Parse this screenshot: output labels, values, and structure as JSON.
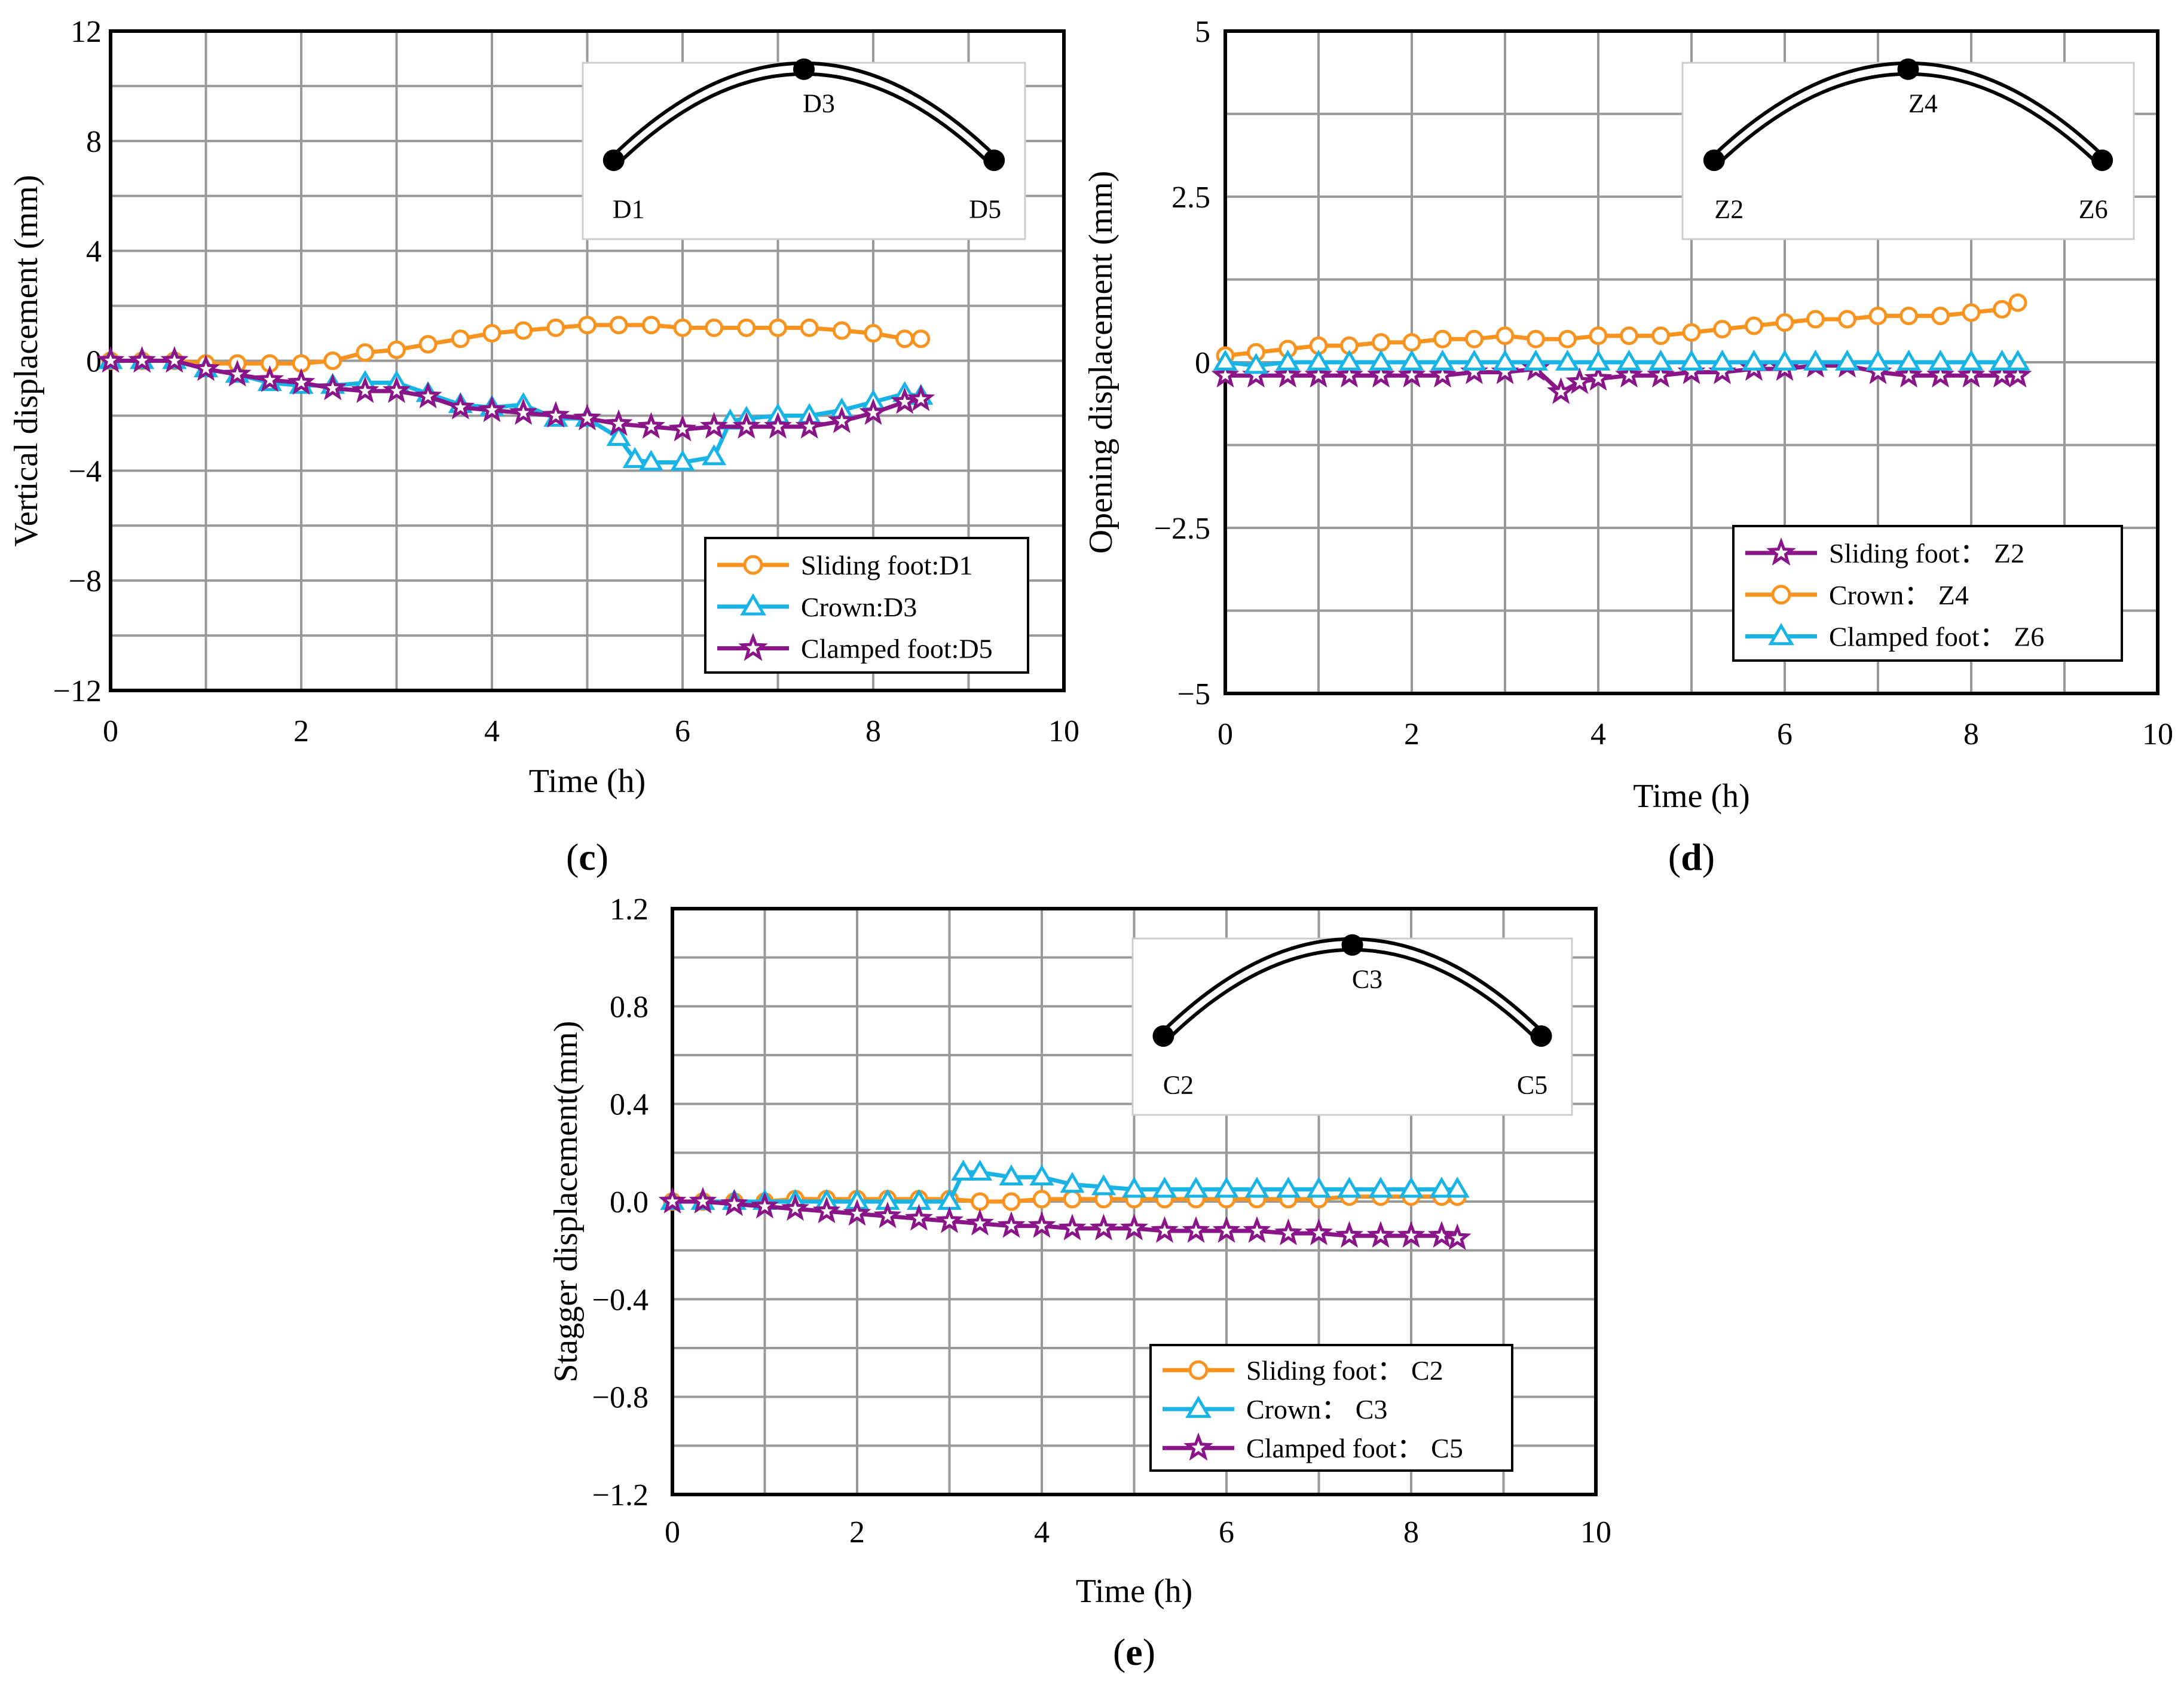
{
  "colors": {
    "orange": "#f7931e",
    "blue": "#1ab3e6",
    "purple": "#8a1588",
    "grid": "#999999",
    "axis": "#000000"
  },
  "chart_data": [
    {
      "id": "c",
      "type": "line",
      "panel_label": "c",
      "xlabel": "Time (h)",
      "ylabel": "Vertical displacement (mm)",
      "xlim": [
        0,
        10
      ],
      "ylim": [
        -12,
        12
      ],
      "xticks": [
        0,
        2,
        4,
        6,
        8,
        10
      ],
      "yticks": [
        -12,
        -8,
        -4,
        0,
        4,
        8,
        12
      ],
      "ytick_labels": [
        "−12",
        "−8",
        "−4",
        "0",
        "4",
        "8",
        "12"
      ],
      "grid": true,
      "legend_position": "bottom-right",
      "inset": {
        "left_label": "D1",
        "crown_label": "D3",
        "right_label": "D5"
      },
      "series": [
        {
          "name": "Sliding foot:D1",
          "color": "orange",
          "marker": "circle",
          "x": [
            0,
            0.33,
            0.67,
            1,
            1.33,
            1.67,
            2,
            2.33,
            2.67,
            3,
            3.33,
            3.67,
            4,
            4.33,
            4.67,
            5,
            5.33,
            5.67,
            6,
            6.33,
            6.67,
            7,
            7.33,
            7.67,
            8,
            8.33,
            8.5
          ],
          "y": [
            0,
            0,
            0,
            -0.1,
            -0.1,
            -0.1,
            -0.1,
            0,
            0.3,
            0.4,
            0.6,
            0.8,
            1.0,
            1.1,
            1.2,
            1.3,
            1.3,
            1.3,
            1.2,
            1.2,
            1.2,
            1.2,
            1.2,
            1.1,
            1.0,
            0.8,
            0.8
          ]
        },
        {
          "name": "Crown:D3",
          "color": "blue",
          "marker": "triangle",
          "x": [
            0,
            0.33,
            0.67,
            1,
            1.33,
            1.67,
            2,
            2.33,
            2.67,
            3,
            3.33,
            3.67,
            4,
            4.33,
            4.67,
            5,
            5.33,
            5.5,
            5.67,
            6,
            6.33,
            6.5,
            6.67,
            7,
            7.33,
            7.67,
            8,
            8.33,
            8.5
          ],
          "y": [
            0,
            0,
            0,
            -0.3,
            -0.5,
            -0.8,
            -0.9,
            -0.9,
            -0.8,
            -0.8,
            -1.2,
            -1.6,
            -1.7,
            -1.6,
            -2.1,
            -2.1,
            -2.8,
            -3.6,
            -3.7,
            -3.7,
            -3.5,
            -2.2,
            -2.1,
            -2.0,
            -2.0,
            -1.8,
            -1.5,
            -1.2,
            -1.3
          ]
        },
        {
          "name": "Clamped foot:D5",
          "color": "purple",
          "marker": "star",
          "x": [
            0,
            0.33,
            0.67,
            1,
            1.33,
            1.67,
            2,
            2.33,
            2.67,
            3,
            3.33,
            3.67,
            4,
            4.33,
            4.67,
            5,
            5.33,
            5.67,
            6,
            6.33,
            6.67,
            7,
            7.33,
            7.67,
            8,
            8.33,
            8.5
          ],
          "y": [
            0,
            0,
            0,
            -0.3,
            -0.5,
            -0.7,
            -0.8,
            -1.0,
            -1.1,
            -1.1,
            -1.3,
            -1.7,
            -1.8,
            -1.9,
            -2.0,
            -2.1,
            -2.3,
            -2.4,
            -2.5,
            -2.4,
            -2.4,
            -2.4,
            -2.4,
            -2.2,
            -1.9,
            -1.5,
            -1.4
          ]
        }
      ]
    },
    {
      "id": "d",
      "type": "line",
      "panel_label": "d",
      "xlabel": "Time (h)",
      "ylabel": "Opening displacement (mm)",
      "xlim": [
        0,
        10
      ],
      "ylim": [
        -5,
        5
      ],
      "xticks": [
        0,
        2,
        4,
        6,
        8,
        10
      ],
      "yticks": [
        -5,
        -2.5,
        0,
        2.5,
        5
      ],
      "ytick_labels": [
        "−5",
        "−2.5",
        "0",
        "2.5",
        "5"
      ],
      "grid": true,
      "legend_position": "bottom-right",
      "inset": {
        "left_label": "Z2",
        "crown_label": "Z4",
        "right_label": "Z6"
      },
      "series": [
        {
          "name": "Sliding foot： Z2",
          "color": "purple",
          "marker": "star",
          "x": [
            0,
            0.33,
            0.67,
            1,
            1.33,
            1.67,
            2,
            2.33,
            2.67,
            3,
            3.33,
            3.6,
            3.8,
            4,
            4.33,
            4.67,
            5,
            5.33,
            5.67,
            6,
            6.33,
            6.67,
            7,
            7.33,
            7.67,
            8,
            8.33,
            8.5
          ],
          "y": [
            -0.2,
            -0.2,
            -0.2,
            -0.2,
            -0.2,
            -0.2,
            -0.2,
            -0.2,
            -0.15,
            -0.15,
            -0.1,
            -0.45,
            -0.3,
            -0.25,
            -0.2,
            -0.2,
            -0.15,
            -0.15,
            -0.1,
            -0.1,
            -0.05,
            -0.05,
            -0.15,
            -0.2,
            -0.2,
            -0.2,
            -0.2,
            -0.2
          ]
        },
        {
          "name": "Crown： Z4",
          "color": "orange",
          "marker": "circle",
          "x": [
            0,
            0.33,
            0.67,
            1,
            1.33,
            1.67,
            2,
            2.33,
            2.67,
            3,
            3.33,
            3.67,
            4,
            4.33,
            4.67,
            5,
            5.33,
            5.67,
            6,
            6.33,
            6.67,
            7,
            7.33,
            7.67,
            8,
            8.33,
            8.5
          ],
          "y": [
            0.1,
            0.15,
            0.2,
            0.25,
            0.25,
            0.3,
            0.3,
            0.35,
            0.35,
            0.4,
            0.35,
            0.35,
            0.4,
            0.4,
            0.4,
            0.45,
            0.5,
            0.55,
            0.6,
            0.65,
            0.65,
            0.7,
            0.7,
            0.7,
            0.75,
            0.8,
            0.9
          ]
        },
        {
          "name": "Clamped foot： Z6",
          "color": "blue",
          "marker": "triangle",
          "x": [
            0,
            0.33,
            0.67,
            1,
            1.33,
            1.67,
            2,
            2.33,
            2.67,
            3,
            3.33,
            3.67,
            4,
            4.33,
            4.67,
            5,
            5.33,
            5.67,
            6,
            6.33,
            6.67,
            7,
            7.33,
            7.67,
            8,
            8.33,
            8.5
          ],
          "y": [
            0,
            -0.05,
            0,
            0,
            0,
            0,
            0,
            0,
            0,
            0,
            0,
            0,
            0,
            0,
            0,
            0,
            0,
            0,
            0,
            0,
            0,
            0,
            0,
            0,
            0,
            0,
            0
          ]
        }
      ]
    },
    {
      "id": "e",
      "type": "line",
      "panel_label": "e",
      "xlabel": "Time (h)",
      "ylabel": "Stagger displacement(mm)",
      "xlim": [
        0,
        10
      ],
      "ylim": [
        -1.2,
        1.2
      ],
      "xticks": [
        0,
        2,
        4,
        6,
        8,
        10
      ],
      "yticks": [
        -1.2,
        -0.8,
        -0.4,
        0,
        0.4,
        0.8,
        1.2
      ],
      "ytick_labels": [
        "−1.2",
        "−0.8",
        "−0.4",
        "0.0",
        "0.4",
        "0.8",
        "1.2"
      ],
      "grid": true,
      "legend_position": "bottom-right",
      "inset": {
        "left_label": "C2",
        "crown_label": "C3",
        "right_label": "C5"
      },
      "series": [
        {
          "name": "Sliding foot： C2",
          "color": "orange",
          "marker": "circle",
          "x": [
            0,
            0.33,
            0.67,
            1,
            1.33,
            1.67,
            2,
            2.33,
            2.67,
            3,
            3.33,
            3.67,
            4,
            4.33,
            4.67,
            5,
            5.33,
            5.67,
            6,
            6.33,
            6.67,
            7,
            7.33,
            7.67,
            8,
            8.33,
            8.5
          ],
          "y": [
            0,
            0,
            0,
            0,
            0.01,
            0.01,
            0.01,
            0.01,
            0.01,
            0.01,
            0,
            0,
            0.01,
            0.01,
            0.01,
            0.01,
            0.01,
            0.01,
            0.01,
            0.01,
            0.01,
            0.01,
            0.02,
            0.02,
            0.02,
            0.02,
            0.02
          ]
        },
        {
          "name": "Crown： C3",
          "color": "blue",
          "marker": "triangle",
          "x": [
            0,
            0.33,
            0.67,
            1,
            1.33,
            1.67,
            2,
            2.33,
            2.67,
            3,
            3.15,
            3.33,
            3.67,
            4,
            4.33,
            4.67,
            5,
            5.33,
            5.67,
            6,
            6.33,
            6.67,
            7,
            7.33,
            7.67,
            8,
            8.33,
            8.5
          ],
          "y": [
            0,
            0,
            0,
            0,
            0,
            0,
            0,
            0,
            0,
            0,
            0.12,
            0.12,
            0.1,
            0.1,
            0.07,
            0.06,
            0.05,
            0.05,
            0.05,
            0.05,
            0.05,
            0.05,
            0.05,
            0.05,
            0.05,
            0.05,
            0.05,
            0.05
          ]
        },
        {
          "name": "Clamped foot： C5",
          "color": "purple",
          "marker": "star",
          "x": [
            0,
            0.33,
            0.67,
            1,
            1.33,
            1.67,
            2,
            2.33,
            2.67,
            3,
            3.33,
            3.67,
            4,
            4.33,
            4.67,
            5,
            5.33,
            5.67,
            6,
            6.33,
            6.67,
            7,
            7.33,
            7.67,
            8,
            8.33,
            8.5
          ],
          "y": [
            0,
            0,
            -0.01,
            -0.02,
            -0.03,
            -0.04,
            -0.05,
            -0.06,
            -0.07,
            -0.08,
            -0.09,
            -0.1,
            -0.1,
            -0.11,
            -0.11,
            -0.11,
            -0.12,
            -0.12,
            -0.12,
            -0.12,
            -0.13,
            -0.13,
            -0.14,
            -0.14,
            -0.14,
            -0.14,
            -0.15
          ]
        }
      ]
    }
  ]
}
